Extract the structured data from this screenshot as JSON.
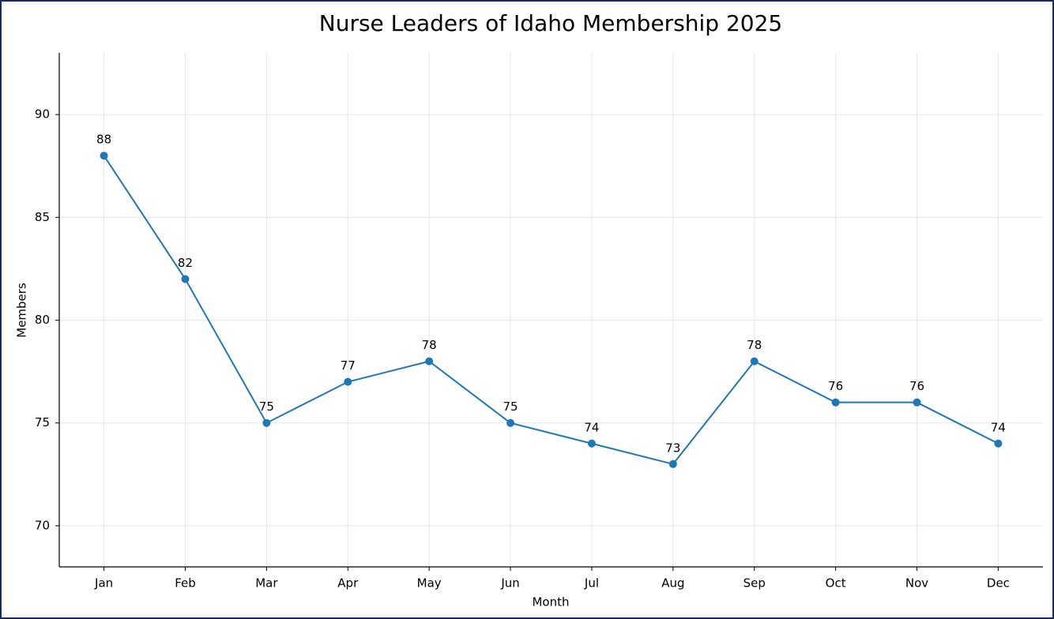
{
  "chart_data": {
    "type": "line",
    "title": "Nurse Leaders of Idaho Membership 2025",
    "x_label": "Month",
    "y_label": "Members",
    "categories": [
      "Jan",
      "Feb",
      "Mar",
      "Apr",
      "May",
      "Jun",
      "Jul",
      "Aug",
      "Sep",
      "Oct",
      "Nov",
      "Dec"
    ],
    "series": [
      {
        "name": "Members",
        "color": "#1f77b4",
        "values": [
          88,
          82,
          75,
          77,
          78,
          75,
          74,
          73,
          78,
          76,
          76,
          74
        ]
      }
    ],
    "ylim": [
      68,
      93
    ],
    "yticks": [
      70,
      75,
      80,
      85,
      90
    ],
    "grid": true
  }
}
